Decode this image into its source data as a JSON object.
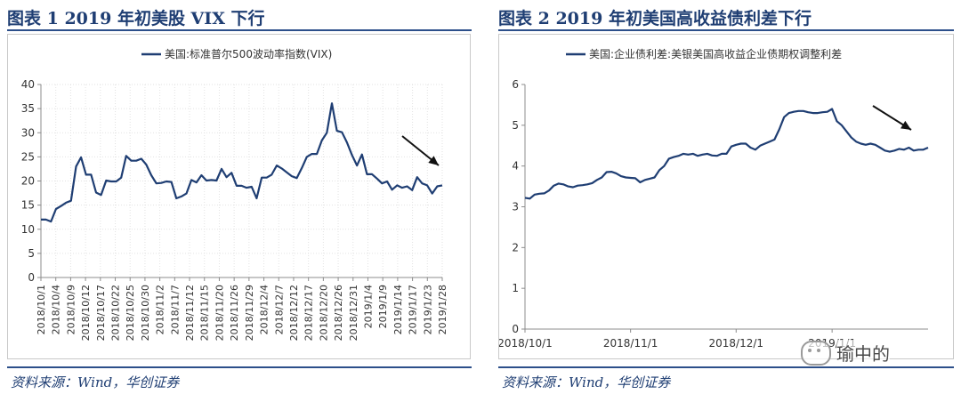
{
  "left": {
    "title": "图表 1   2019 年初美股 VIX 下行",
    "source": "资料来源：Wind，华创证券"
  },
  "right": {
    "title": "图表 2   2019 年初美国高收益债利差下行",
    "source": "资料来源：Wind，华创证券"
  },
  "watermark": {
    "text": "瑜中的",
    "icon": "wechat-logo-icon"
  },
  "colors": {
    "series": "#1f3e73",
    "title": "#1f3e73",
    "rule": "#2c4f8a",
    "grid": "#e2e2e2",
    "arrow": "#111111"
  },
  "chart_data": [
    {
      "type": "line",
      "title": "",
      "xlabel": "",
      "ylabel": "",
      "ylim": [
        0,
        40
      ],
      "yticks": [
        0,
        5,
        10,
        15,
        20,
        25,
        30,
        35,
        40
      ],
      "grid": "dotted",
      "legend_position": "top-center",
      "annotation": "downward arrow near end",
      "x_tick_labels": [
        "2018/10/1",
        "2018/10/4",
        "2018/10/9",
        "2018/10/12",
        "2018/10/17",
        "2018/10/22",
        "2018/10/25",
        "2018/10/30",
        "2018/11/2",
        "2018/11/7",
        "2018/11/12",
        "2018/11/15",
        "2018/11/20",
        "2018/11/26",
        "2018/11/29",
        "2018/12/4",
        "2018/12/7",
        "2018/12/12",
        "2018/12/17",
        "2018/12/20",
        "2018/12/26",
        "2018/12/31",
        "2019/1/4",
        "2019/1/9",
        "2019/1/14",
        "2019/1/17",
        "2019/1/23",
        "2019/1/28"
      ],
      "series": [
        {
          "name": "美国:标准普尔500波动率指数(VIX)",
          "values": [
            12.0,
            12.0,
            11.6,
            14.2,
            14.8,
            15.5,
            15.9,
            23.0,
            24.9,
            21.3,
            21.3,
            17.6,
            17.1,
            20.1,
            19.9,
            19.9,
            20.7,
            25.2,
            24.2,
            24.2,
            24.6,
            23.4,
            21.2,
            19.5,
            19.6,
            19.9,
            19.8,
            16.4,
            16.8,
            17.4,
            20.2,
            19.7,
            21.2,
            20.1,
            20.2,
            20.1,
            22.5,
            20.8,
            21.7,
            19.0,
            19.0,
            18.6,
            18.8,
            16.4,
            20.7,
            20.7,
            21.3,
            23.2,
            22.6,
            21.8,
            21.0,
            20.6,
            22.7,
            25.0,
            25.6,
            25.6,
            28.4,
            30.0,
            36.1,
            30.4,
            30.1,
            28.0,
            25.4,
            23.2,
            25.5,
            21.4,
            21.4,
            20.5,
            19.5,
            19.9,
            18.2,
            19.1,
            18.6,
            18.9,
            18.1,
            20.8,
            19.5,
            19.1,
            17.4,
            18.9,
            19.1
          ]
        }
      ]
    },
    {
      "type": "line",
      "title": "",
      "xlabel": "",
      "ylabel": "",
      "ylim": [
        0,
        6
      ],
      "yticks": [
        0,
        1,
        2,
        3,
        4,
        5,
        6
      ],
      "grid": "none",
      "legend_position": "top-center",
      "annotation": "downward arrow near end",
      "x_tick_labels": [
        "2018/10/1",
        "2018/11/1",
        "2018/12/1",
        "2019/1/1"
      ],
      "x_tick_positions": [
        0,
        22,
        44,
        64
      ],
      "series": [
        {
          "name": "美国:企业债利差:美银美国高收益企业债期权调整利差",
          "values": [
            3.22,
            3.2,
            3.3,
            3.32,
            3.33,
            3.4,
            3.52,
            3.57,
            3.55,
            3.5,
            3.48,
            3.52,
            3.53,
            3.55,
            3.58,
            3.66,
            3.72,
            3.85,
            3.86,
            3.82,
            3.75,
            3.72,
            3.71,
            3.7,
            3.6,
            3.66,
            3.69,
            3.72,
            3.9,
            4.0,
            4.18,
            4.22,
            4.25,
            4.3,
            4.28,
            4.3,
            4.25,
            4.28,
            4.3,
            4.26,
            4.25,
            4.3,
            4.3,
            4.48,
            4.52,
            4.55,
            4.55,
            4.45,
            4.4,
            4.5,
            4.55,
            4.6,
            4.65,
            4.9,
            5.2,
            5.3,
            5.33,
            5.35,
            5.35,
            5.32,
            5.3,
            5.3,
            5.32,
            5.33,
            5.4,
            5.1,
            5.0,
            4.85,
            4.7,
            4.6,
            4.55,
            4.52,
            4.55,
            4.52,
            4.45,
            4.38,
            4.35,
            4.38,
            4.42,
            4.4,
            4.45,
            4.38,
            4.4,
            4.4,
            4.45
          ]
        }
      ]
    }
  ]
}
